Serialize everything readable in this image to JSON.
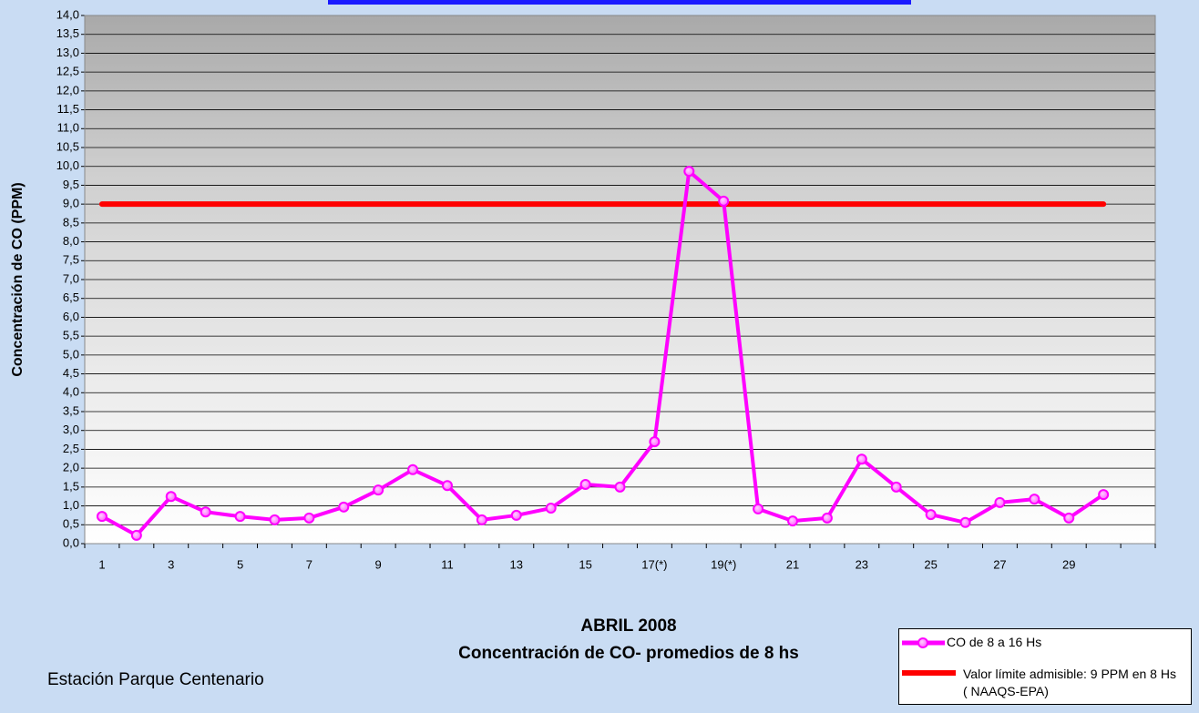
{
  "chart_data": {
    "type": "line",
    "title": "ABRIL 2008",
    "subtitle": "Concentración de CO- promedios de 8 hs",
    "y_label": "Concentración de CO (PPM)",
    "annotation": "Estación Parque Centenario",
    "categories": [
      "1",
      null,
      "3",
      null,
      "5",
      null,
      "7",
      null,
      "9",
      null,
      "11",
      null,
      "13",
      null,
      "15",
      null,
      "17(*)",
      null,
      "19(*)",
      null,
      "21",
      null,
      "23",
      null,
      "25",
      null,
      "27",
      null,
      "29",
      null,
      null
    ],
    "series": [
      {
        "name": "CO de 8 a 16 Hs",
        "color": "#ff00ff",
        "markers": true,
        "values": [
          0.72,
          0.22,
          1.25,
          0.84,
          0.72,
          0.63,
          0.68,
          0.97,
          1.42,
          1.96,
          1.54,
          0.63,
          0.75,
          0.94,
          1.57,
          1.5,
          2.7,
          9.87,
          9.08,
          0.92,
          0.6,
          0.68,
          2.24,
          1.5,
          0.77,
          0.56,
          1.09,
          1.18,
          0.68,
          1.3,
          null
        ]
      },
      {
        "name": "Valor límite admisible: 9 PPM en 8 Hs ( NAAQS-EPA)",
        "color": "#ff0000",
        "markers": false,
        "values": [
          9,
          9,
          9,
          9,
          9,
          9,
          9,
          9,
          9,
          9,
          9,
          9,
          9,
          9,
          9,
          9,
          9,
          9,
          9,
          9,
          9,
          9,
          9,
          9,
          9,
          9,
          9,
          9,
          9,
          9,
          null
        ]
      }
    ],
    "ylim": [
      0,
      14
    ],
    "yticks": [
      {
        "value": 0,
        "label": "0,0"
      },
      {
        "value": 0.5,
        "label": "0,5"
      },
      {
        "value": 1,
        "label": "1,0"
      },
      {
        "value": 1.5,
        "label": "1,5"
      },
      {
        "value": 2,
        "label": "2,0"
      },
      {
        "value": 2.5,
        "label": "2,5"
      },
      {
        "value": 3,
        "label": "3,0"
      },
      {
        "value": 3.5,
        "label": "3,5"
      },
      {
        "value": 4,
        "label": "4,0"
      },
      {
        "value": 4.5,
        "label": "4,5"
      },
      {
        "value": 5,
        "label": "5,0"
      },
      {
        "value": 5.5,
        "label": "5,5"
      },
      {
        "value": 6,
        "label": "6,0"
      },
      {
        "value": 6.5,
        "label": "6,5"
      },
      {
        "value": 7,
        "label": "7,0"
      },
      {
        "value": 7.5,
        "label": "7,5"
      },
      {
        "value": 8,
        "label": "8,0"
      },
      {
        "value": 8.5,
        "label": "8,5"
      },
      {
        "value": 9,
        "label": "9,0"
      },
      {
        "value": 9.5,
        "label": "9,5"
      },
      {
        "value": 10,
        "label": "10,0"
      },
      {
        "value": 10.5,
        "label": "10,5"
      },
      {
        "value": 11,
        "label": "11,0"
      },
      {
        "value": 11.5,
        "label": "11,5"
      },
      {
        "value": 12,
        "label": "12,0"
      },
      {
        "value": 12.5,
        "label": "12,5"
      },
      {
        "value": 13,
        "label": "13,0"
      },
      {
        "value": 13.5,
        "label": "13,5"
      },
      {
        "value": 14,
        "label": "14,0"
      }
    ],
    "grid": true,
    "legend": "bottom-right"
  }
}
